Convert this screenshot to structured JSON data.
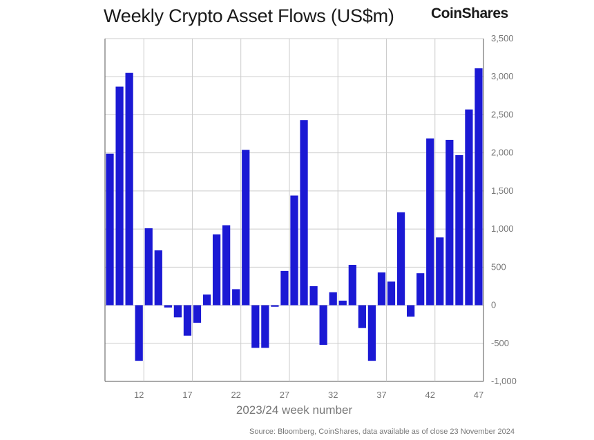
{
  "title": "Weekly Crypto Asset Flows (US$m)",
  "brand": "CoinShares",
  "source": "Source: Bloomberg, CoinShares, data available as of close 23 November 2024",
  "chart_data": {
    "type": "bar",
    "title": "Weekly Crypto Asset Flows (US$m)",
    "xlabel": "2023/24 week number",
    "ylabel": "US$m",
    "ylim": [
      -1000,
      3500
    ],
    "y_ticks": [
      -1000,
      -500,
      0,
      500,
      1000,
      1500,
      2000,
      2500,
      3000,
      3500
    ],
    "y_tick_labels": [
      "-1,000",
      "-500",
      "0",
      "500",
      "1,000",
      "1,500",
      "2,000",
      "2,500",
      "3,000",
      "3,500"
    ],
    "x_tick_labels": [
      "12",
      "17",
      "22",
      "27",
      "32",
      "37",
      "42",
      "47"
    ],
    "x_tick_weeks": [
      12,
      17,
      22,
      27,
      32,
      37,
      42,
      47
    ],
    "categories": [
      9,
      10,
      11,
      12,
      13,
      14,
      15,
      16,
      17,
      18,
      19,
      20,
      21,
      22,
      23,
      24,
      25,
      26,
      27,
      28,
      29,
      30,
      31,
      32,
      33,
      34,
      35,
      36,
      37,
      38,
      39,
      40,
      41,
      42,
      43,
      44,
      45,
      46,
      47
    ],
    "values": [
      1990,
      2870,
      3050,
      -730,
      1010,
      720,
      -30,
      -160,
      -400,
      -230,
      140,
      930,
      1050,
      210,
      2040,
      -560,
      -560,
      -20,
      450,
      1440,
      2430,
      250,
      -520,
      170,
      60,
      530,
      -300,
      -730,
      430,
      310,
      1220,
      -150,
      420,
      2190,
      890,
      2170,
      1970,
      2570,
      3110
    ],
    "bar_color": "#1b19d4",
    "grid": true,
    "y_axis_side": "right",
    "legend": "none"
  }
}
